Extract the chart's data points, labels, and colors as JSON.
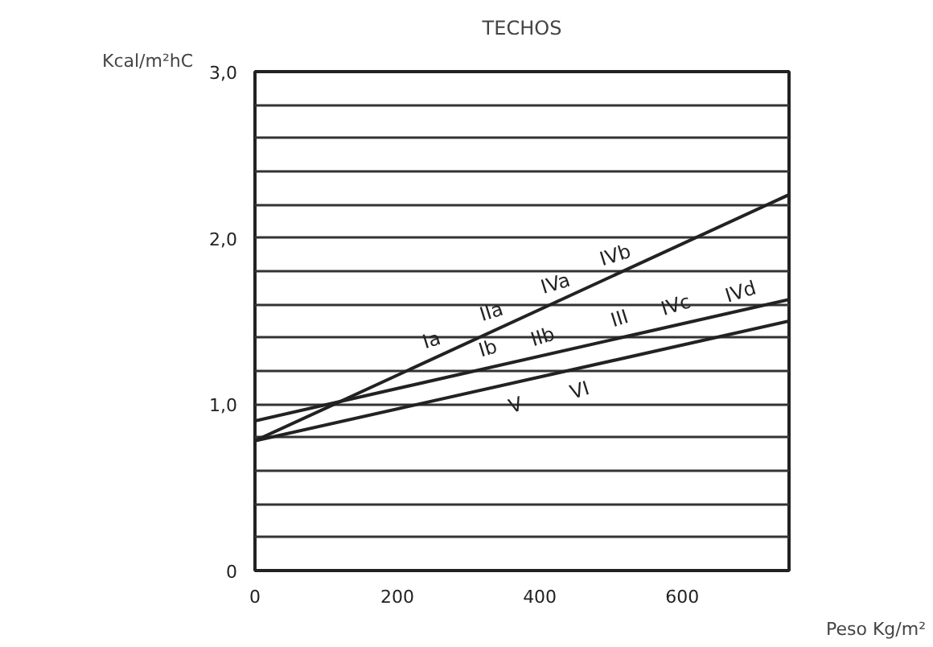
{
  "chart_data": {
    "type": "line",
    "title": "TECHOS",
    "xlabel": "Peso Kg/m²",
    "ylabel": "Kcal/m²hC",
    "x": [
      0,
      750
    ],
    "series": [
      {
        "color": "#222222",
        "values": [
          0.78,
          2.26
        ]
      },
      {
        "color": "#222222",
        "values": [
          0.9,
          1.63
        ]
      },
      {
        "color": "#222222",
        "values": [
          0.78,
          1.5
        ]
      }
    ],
    "xlim": [
      0,
      750
    ],
    "ylim": [
      0,
      3.0
    ],
    "xticks": [
      0,
      200,
      400,
      600
    ],
    "yticks": [
      0,
      {
        "value": 0.2,
        "label": null
      },
      {
        "value": 0.4,
        "label": null
      },
      {
        "value": 0.6,
        "label": null
      },
      {
        "value": 0.8,
        "label": null
      },
      {
        "value": 1.0,
        "label": "1,0"
      },
      {
        "value": 1.2,
        "label": null
      },
      {
        "value": 1.4,
        "label": null
      },
      {
        "value": 1.6,
        "label": null
      },
      {
        "value": 1.8,
        "label": null
      },
      {
        "value": 2.0,
        "label": "2,0"
      },
      {
        "value": 2.2,
        "label": null
      },
      {
        "value": 2.4,
        "label": null
      },
      {
        "value": 2.6,
        "label": null
      },
      {
        "value": 2.8,
        "label": null
      },
      {
        "value": 3.0,
        "label": "3,0"
      }
    ],
    "grid": "y",
    "marker": "none",
    "line_style": "solid",
    "annotations": [
      {
        "text": "Ia",
        "x": 248,
        "y": 1.27
      },
      {
        "text": "IIa",
        "x": 332,
        "y": 1.44
      },
      {
        "text": "IVa",
        "x": 422,
        "y": 1.61
      },
      {
        "text": "IVb",
        "x": 506,
        "y": 1.78
      },
      {
        "text": "Ib",
        "x": 327,
        "y": 1.22
      },
      {
        "text": "IIb",
        "x": 404,
        "y": 1.29
      },
      {
        "text": "III",
        "x": 512,
        "y": 1.4
      },
      {
        "text": "IVc",
        "x": 591,
        "y": 1.48
      },
      {
        "text": "IVd",
        "x": 682,
        "y": 1.56
      },
      {
        "text": "V",
        "x": 366,
        "y": 1.13
      },
      {
        "text": "VI",
        "x": 456,
        "y": 1.22
      }
    ]
  }
}
